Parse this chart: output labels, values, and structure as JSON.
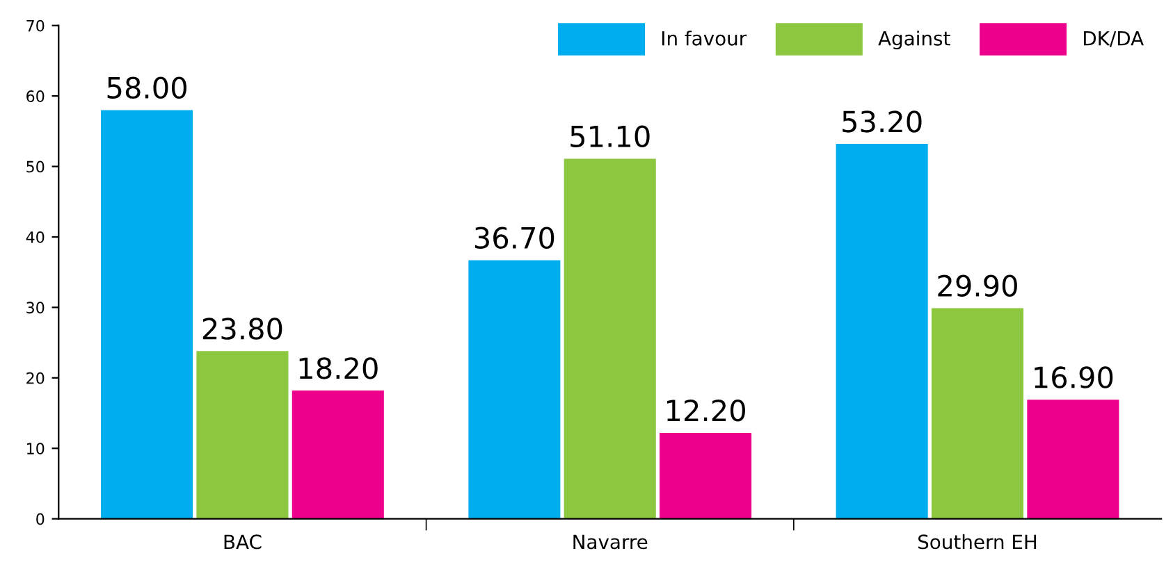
{
  "chart_data": {
    "type": "bar",
    "categories": [
      "BAC",
      "Navarre",
      "Southern EH"
    ],
    "series": [
      {
        "name": "In favour",
        "color": "#00aeef",
        "values": [
          58.0,
          36.7,
          53.2
        ],
        "value_labels": [
          "58.00",
          "36.70",
          "53.20"
        ]
      },
      {
        "name": "Against",
        "color": "#8dc63f",
        "values": [
          23.8,
          51.1,
          29.9
        ],
        "value_labels": [
          "23.80",
          "51.10",
          "29.90"
        ]
      },
      {
        "name": "DK/DA",
        "color": "#ec008c",
        "values": [
          18.2,
          12.2,
          16.9
        ],
        "value_labels": [
          "18.20",
          "12.20",
          "16.90"
        ]
      }
    ],
    "ylim": [
      0,
      70
    ],
    "yticks": [
      0,
      10,
      20,
      30,
      40,
      50,
      60,
      70
    ],
    "grid": false,
    "legend": "top right"
  }
}
